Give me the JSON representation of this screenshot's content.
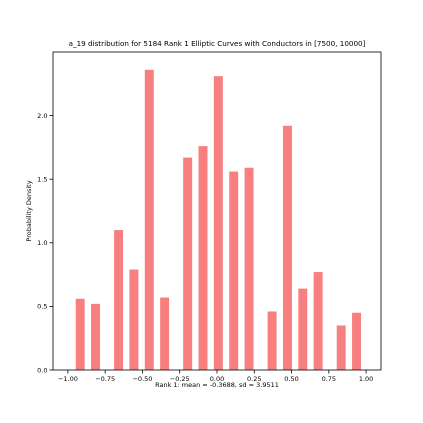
{
  "chart_data": {
    "type": "bar",
    "title": "a_19 distribution for 5184 Rank 1 Elliptic Curves with Conductors in [7500, 10000]",
    "xlabel": "Rank 1: mean = -0.3688, sd = 3.9511",
    "ylabel": "Probability Density",
    "xlim": [
      -1.1,
      1.1
    ],
    "ylim": [
      0,
      2.5
    ],
    "xticks": [
      -1.0,
      -0.75,
      -0.5,
      -0.25,
      0.0,
      0.25,
      0.5,
      0.75,
      1.0
    ],
    "xtick_labels": [
      "−1.00",
      "−0.75",
      "−0.50",
      "−0.25",
      "0.00",
      "0.25",
      "0.50",
      "0.75",
      "1.00"
    ],
    "yticks": [
      0.0,
      0.5,
      1.0,
      1.5,
      2.0
    ],
    "ytick_labels": [
      "0.0",
      "0.5",
      "1.0",
      "1.5",
      "2.0"
    ],
    "bar_width": 0.06,
    "x": [
      -0.9177,
      -0.8148,
      -0.6602,
      -0.5573,
      -0.4543,
      -0.3514,
      -0.1968,
      -0.0939,
      0.0091,
      0.112,
      0.2149,
      0.3696,
      0.4725,
      0.5754,
      0.6783,
      0.8329,
      0.9358
    ],
    "values": [
      0.56,
      0.52,
      1.1,
      0.79,
      2.36,
      0.57,
      1.67,
      1.76,
      2.31,
      1.56,
      1.59,
      0.46,
      1.92,
      0.64,
      0.77,
      0.35,
      0.45
    ],
    "bar_color": "#f77f7f",
    "grid": false,
    "legend": "none"
  }
}
